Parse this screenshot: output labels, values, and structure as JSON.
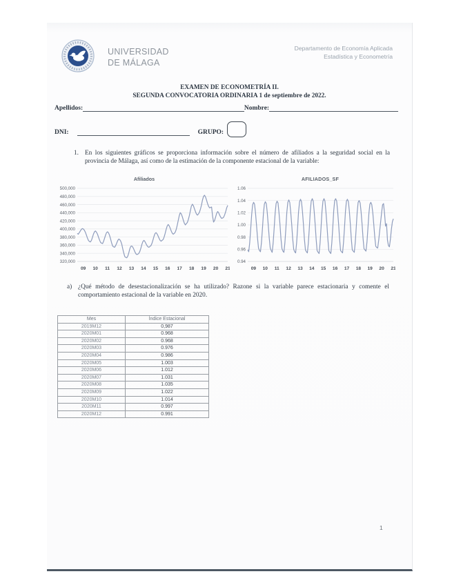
{
  "header": {
    "university_line1": "UNIVERSIDAD",
    "university_line2": "DE MÁLAGA",
    "dept_line1": "Departamento de Economía Aplicada",
    "dept_line2": "Estadística y Econometría"
  },
  "title": {
    "line1": "EXAMEN DE ECONOMETRÍA II.",
    "line2": "SEGUNDA CONVOCATORIA ORDINARIA  1 de septiembre de 2022."
  },
  "fields": {
    "apellidos_label": "Apellidos:",
    "nombre_label": "Nombre:",
    "dni_label": "DNI:",
    "grupo_label": "GRUPO:"
  },
  "question1": {
    "number": "1.",
    "text": "En los siguientes gráficos se proporciona información sobre el número de afiliados a la seguridad social en la provincia de Málaga, así como de la estimación de la componente estacional de la variable:"
  },
  "question_a": {
    "number": "a)",
    "text": "¿Qué método de desestacionalización se ha utilizado? Razone si la variable parece estacionaria y comente el comportamiento estacional de la variable en 2020."
  },
  "chart_data": [
    {
      "type": "line",
      "title": "Afiliados",
      "x_description": "monthly series 2009M01 - 2021M06",
      "xtick_labels": [
        "09",
        "10",
        "11",
        "12",
        "13",
        "14",
        "15",
        "16",
        "17",
        "18",
        "19",
        "20",
        "21"
      ],
      "ylim": [
        320000,
        500000
      ],
      "yticks": [
        320000,
        340000,
        360000,
        380000,
        400000,
        420000,
        440000,
        460000,
        480000,
        500000
      ],
      "ytick_labels": [
        "320,000",
        "340,000",
        "360,000",
        "380,000",
        "400,000",
        "420,000",
        "440,000",
        "460,000",
        "480,000",
        "500,000"
      ],
      "grid": true,
      "legend": "none",
      "line_color": "#8e9cbc",
      "values": [
        389000,
        387000,
        391000,
        395000,
        399000,
        401000,
        400000,
        397000,
        392000,
        385000,
        378000,
        372000,
        369000,
        368000,
        372000,
        379000,
        387000,
        393000,
        395000,
        392000,
        387000,
        380000,
        373000,
        367000,
        365000,
        364000,
        369000,
        377000,
        385000,
        391000,
        393000,
        390000,
        384000,
        375000,
        366000,
        358000,
        356000,
        355000,
        359000,
        365000,
        371000,
        375000,
        374000,
        370000,
        363000,
        352000,
        341000,
        332000,
        330000,
        329000,
        333000,
        341000,
        351000,
        357000,
        358000,
        355000,
        350000,
        344000,
        339000,
        337000,
        338000,
        340000,
        345000,
        353000,
        362000,
        369000,
        372000,
        369000,
        364000,
        359000,
        356000,
        355000,
        357000,
        359000,
        365000,
        373000,
        382000,
        389000,
        391000,
        388000,
        383000,
        377000,
        372000,
        370000,
        372000,
        374000,
        380000,
        389000,
        399000,
        407000,
        411000,
        408000,
        402000,
        395000,
        390000,
        387000,
        389000,
        392000,
        399000,
        409000,
        421000,
        433000,
        440000,
        437000,
        430000,
        422000,
        414000,
        410000,
        413000,
        416000,
        423000,
        433000,
        445000,
        456000,
        461000,
        457000,
        450000,
        443000,
        437000,
        434000,
        437000,
        441000,
        449000,
        459000,
        471000,
        480000,
        483000,
        479000,
        471000,
        463000,
        456000,
        452000,
        453000,
        454000,
        431000,
        417000,
        421000,
        429000,
        438000,
        443000,
        440000,
        434000,
        429000,
        426000,
        427000,
        429000,
        435000,
        443000,
        452000,
        458000
      ]
    },
    {
      "type": "line",
      "title": "AFILIADOS_SF",
      "x_description": "monthly seasonal factors 2009M01 - 2021M06",
      "xtick_labels": [
        "09",
        "10",
        "11",
        "12",
        "13",
        "14",
        "15",
        "16",
        "17",
        "18",
        "19",
        "20",
        "21"
      ],
      "ylim": [
        0.94,
        1.06
      ],
      "yticks": [
        0.94,
        0.96,
        0.98,
        1.0,
        1.02,
        1.04,
        1.06
      ],
      "ytick_labels": [
        "0.94",
        "0.96",
        "0.98",
        "1.00",
        "1.02",
        "1.04",
        "1.06"
      ],
      "grid": true,
      "legend": "none",
      "line_color": "#8e9cbc",
      "values": [
        0.959,
        0.956,
        0.97,
        0.992,
        1.017,
        1.033,
        1.037,
        1.034,
        1.019,
        1.0,
        0.978,
        0.962,
        0.958,
        0.956,
        0.97,
        0.992,
        1.018,
        1.034,
        1.038,
        1.035,
        1.02,
        1.0,
        0.978,
        0.962,
        0.958,
        0.955,
        0.97,
        0.993,
        1.019,
        1.035,
        1.039,
        1.036,
        1.02,
        1.001,
        0.978,
        0.961,
        0.957,
        0.955,
        0.97,
        0.993,
        1.02,
        1.037,
        1.041,
        1.037,
        1.021,
        1.001,
        0.978,
        0.96,
        0.956,
        0.954,
        0.97,
        0.994,
        1.021,
        1.038,
        1.042,
        1.038,
        1.022,
        1.001,
        0.977,
        0.959,
        0.956,
        0.954,
        0.97,
        0.994,
        1.022,
        1.039,
        1.043,
        1.039,
        1.022,
        1.001,
        0.977,
        0.958,
        0.955,
        0.953,
        0.97,
        0.995,
        1.022,
        1.039,
        1.043,
        1.039,
        1.022,
        1.001,
        0.977,
        0.958,
        0.955,
        0.953,
        0.97,
        0.995,
        1.023,
        1.04,
        1.043,
        1.039,
        1.022,
        1.001,
        0.977,
        0.958,
        0.956,
        0.954,
        0.971,
        0.995,
        1.022,
        1.039,
        1.042,
        1.038,
        1.022,
        1.001,
        0.977,
        0.959,
        0.957,
        0.955,
        0.971,
        0.995,
        1.021,
        1.037,
        1.04,
        1.036,
        1.021,
        1.001,
        0.978,
        0.961,
        0.959,
        0.957,
        0.972,
        0.995,
        1.019,
        1.034,
        1.037,
        1.033,
        1.019,
        1.0,
        0.98,
        0.965,
        0.963,
        0.962,
        0.975,
        0.99,
        1.005,
        1.02,
        1.033,
        1.035,
        1.018,
        0.998,
        1.002,
        0.975,
        0.966,
        0.964,
        0.977,
        0.993,
        1.005,
        1.01
      ]
    }
  ],
  "table": {
    "headers": [
      "Mes",
      "Índice Estacional"
    ],
    "rows": [
      [
        "2019M12",
        "0,987"
      ],
      [
        "2020M01",
        "0.968"
      ],
      [
        "2020M02",
        "0.968"
      ],
      [
        "2020M03",
        "0.976"
      ],
      [
        "2020M04",
        "0.986"
      ],
      [
        "2020M05",
        "1.003"
      ],
      [
        "2020M06",
        "1.012"
      ],
      [
        "2020M07",
        "1.031"
      ],
      [
        "2020M08",
        "1.035"
      ],
      [
        "2020M09",
        "1.022"
      ],
      [
        "2020M10",
        "1.014"
      ],
      [
        "2020M11",
        "0.997"
      ],
      [
        "2020M12",
        "0.991"
      ]
    ]
  },
  "page": {
    "number": "1"
  }
}
